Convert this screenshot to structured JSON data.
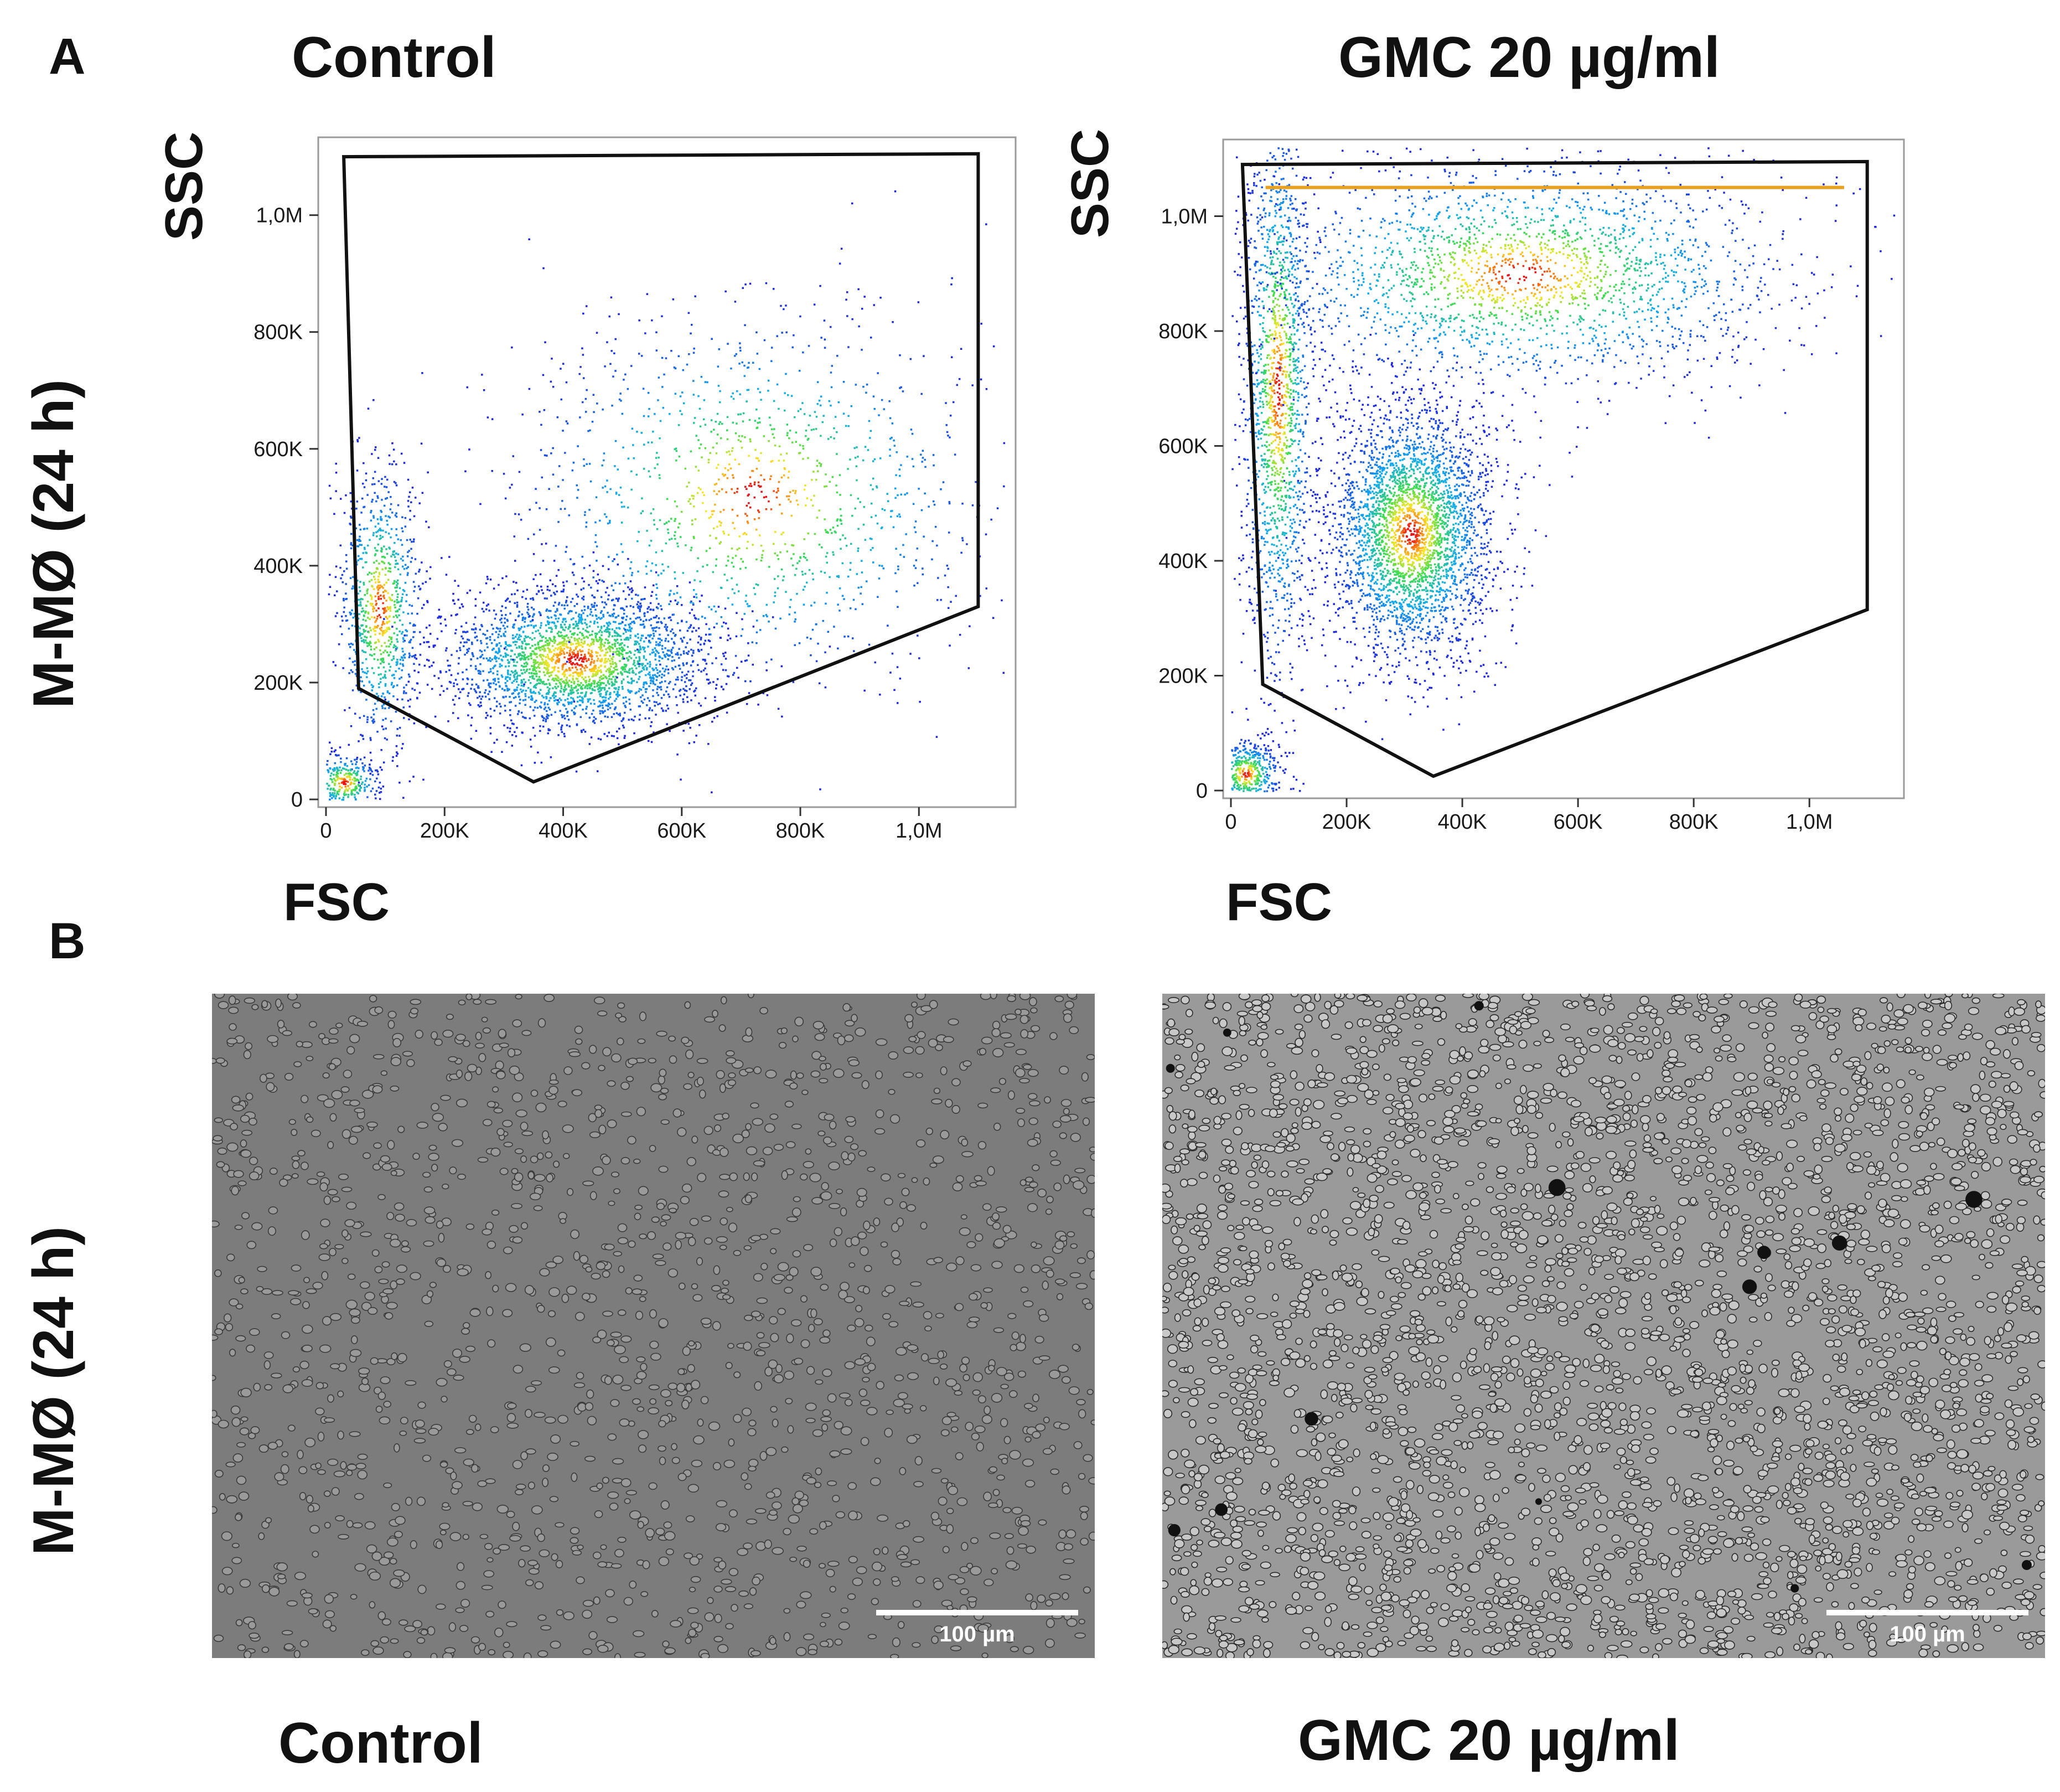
{
  "panels": {
    "a_letter": "A",
    "b_letter": "B"
  },
  "row_label": "M-MØ (24 h)",
  "conditions": {
    "control": "Control",
    "gmc": "GMC 20 µg/ml"
  },
  "axes": {
    "x_name": "FSC",
    "y_name": "SSC",
    "x_ticks": [
      "0",
      "200K",
      "400K",
      "600K",
      "800K",
      "1,0M"
    ],
    "y_ticks": [
      "0",
      "200K",
      "400K",
      "600K",
      "800K",
      "1,0M"
    ]
  },
  "scale_bar_label": "100 µm",
  "chart_data": [
    {
      "type": "scatter",
      "title": "Control",
      "xlabel": "FSC",
      "ylabel": "SSC",
      "xlim": [
        0,
        1150000
      ],
      "ylim": [
        0,
        1120000
      ],
      "gate_polygon": [
        [
          30000,
          1100000
        ],
        [
          1100000,
          1105000
        ],
        [
          1100000,
          330000
        ],
        [
          350000,
          30000
        ],
        [
          55000,
          190000
        ]
      ],
      "populations": [
        {
          "name": "main",
          "center": [
            420000,
            240000
          ],
          "spread": [
            110000,
            60000
          ]
        },
        {
          "name": "low-FSC",
          "center": [
            90000,
            330000
          ],
          "spread": [
            35000,
            120000
          ]
        },
        {
          "name": "debris",
          "center": [
            30000,
            30000
          ],
          "spread": [
            30000,
            25000
          ]
        },
        {
          "name": "tail",
          "center": [
            720000,
            520000
          ],
          "spread": [
            200000,
            160000
          ]
        }
      ]
    },
    {
      "type": "scatter",
      "title": "GMC 20 µg/ml",
      "xlabel": "FSC",
      "ylabel": "SSC",
      "xlim": [
        0,
        1150000
      ],
      "ylim": [
        0,
        1120000
      ],
      "gate_polygon": [
        [
          20000,
          1090000
        ],
        [
          1100000,
          1095000
        ],
        [
          1100000,
          315000
        ],
        [
          350000,
          25000
        ],
        [
          55000,
          185000
        ]
      ],
      "saturation_line_ssc": 1050000,
      "populations": [
        {
          "name": "main",
          "center": [
            310000,
            450000
          ],
          "spread": [
            70000,
            110000
          ]
        },
        {
          "name": "low-FSC",
          "center": [
            80000,
            700000
          ],
          "spread": [
            30000,
            250000
          ]
        },
        {
          "name": "debris",
          "center": [
            25000,
            30000
          ],
          "spread": [
            30000,
            30000
          ]
        },
        {
          "name": "upper",
          "center": [
            500000,
            900000
          ],
          "spread": [
            230000,
            100000
          ]
        }
      ]
    }
  ]
}
